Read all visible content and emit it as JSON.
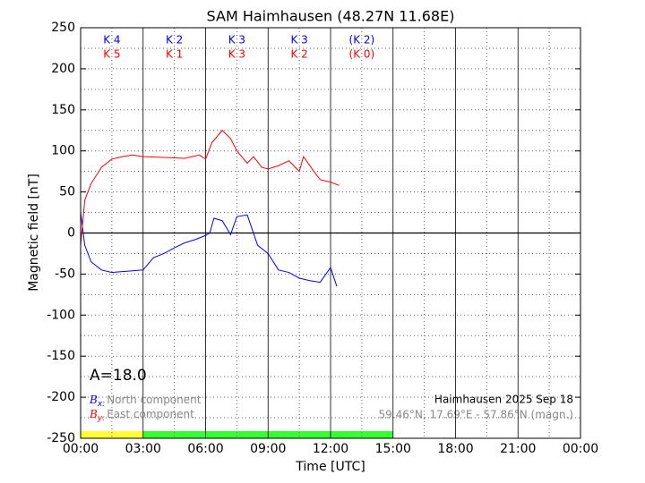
{
  "chart_data": {
    "type": "line",
    "title": "SAM Haimhausen (48.27N 11.68E)",
    "x_label": "Time [UTC]",
    "y_label": "Magnetic field [nT]",
    "xlim": [
      0,
      24
    ],
    "xticks": [
      {
        "value": 0,
        "label": "00:00"
      },
      {
        "value": 3,
        "label": "03:00"
      },
      {
        "value": 6,
        "label": "06:00"
      },
      {
        "value": 9,
        "label": "09:00"
      },
      {
        "value": 12,
        "label": "12:00"
      },
      {
        "value": 15,
        "label": "15:00"
      },
      {
        "value": 18,
        "label": "18:00"
      },
      {
        "value": 21,
        "label": "21:00"
      },
      {
        "value": 24,
        "label": "00:00"
      }
    ],
    "ylim": [
      -250,
      250
    ],
    "yticks": [
      -250,
      -200,
      -150,
      -100,
      -50,
      0,
      50,
      100,
      150,
      200,
      250
    ],
    "grid": true,
    "series": [
      {
        "symbol": "B",
        "subscript": "x:",
        "name": "North component",
        "color": "#0000ff",
        "x": [
          0,
          0.2,
          0.5,
          1,
          1.5,
          2,
          2.5,
          3,
          3.5,
          4,
          4.5,
          5,
          5.5,
          6,
          6.2,
          6.4,
          6.8,
          7.2,
          7.5,
          8,
          8.5,
          9,
          9.5,
          10,
          10.5,
          11,
          11.5,
          12,
          12.3
        ],
        "values": [
          25,
          -15,
          -35,
          -45,
          -48,
          -47,
          -46,
          -45,
          -30,
          -25,
          -18,
          -12,
          -8,
          -3,
          0,
          18,
          15,
          -2,
          20,
          22,
          -15,
          -25,
          -45,
          -48,
          -55,
          -58,
          -60,
          -42,
          -65
        ]
      },
      {
        "symbol": "B",
        "subscript": "y:",
        "name": "East component",
        "color": "#ff0000",
        "x": [
          0,
          0.2,
          0.5,
          1,
          1.5,
          2,
          2.5,
          3,
          4,
          5,
          5.7,
          6,
          6.3,
          6.8,
          7.2,
          7.5,
          8,
          8.3,
          8.7,
          9,
          9.5,
          10,
          10.5,
          10.7,
          11.2,
          11.5,
          12,
          12.4
        ],
        "values": [
          -15,
          40,
          60,
          80,
          90,
          93,
          95,
          93,
          92,
          91,
          95,
          90,
          110,
          125,
          115,
          100,
          85,
          93,
          80,
          78,
          82,
          88,
          75,
          93,
          75,
          65,
          62,
          58
        ]
      }
    ],
    "k_indices": {
      "x": [
        "K 4",
        "K 2",
        "K 3",
        "K 3",
        "(K 2)"
      ],
      "y": [
        "K 5",
        "K 1",
        "K 3",
        "K 2",
        "(K 0)"
      ]
    },
    "coverage": [
      {
        "start": 0,
        "end": 3,
        "color": "#ffff33"
      },
      {
        "start": 3,
        "end": 15,
        "color": "#33ff33"
      }
    ],
    "annotation": "A=18.0",
    "station": "Haimhausen 2025 Sep 18",
    "coordinates": "59.46°N, 17.69°E - 57.86°N (magn.)"
  }
}
